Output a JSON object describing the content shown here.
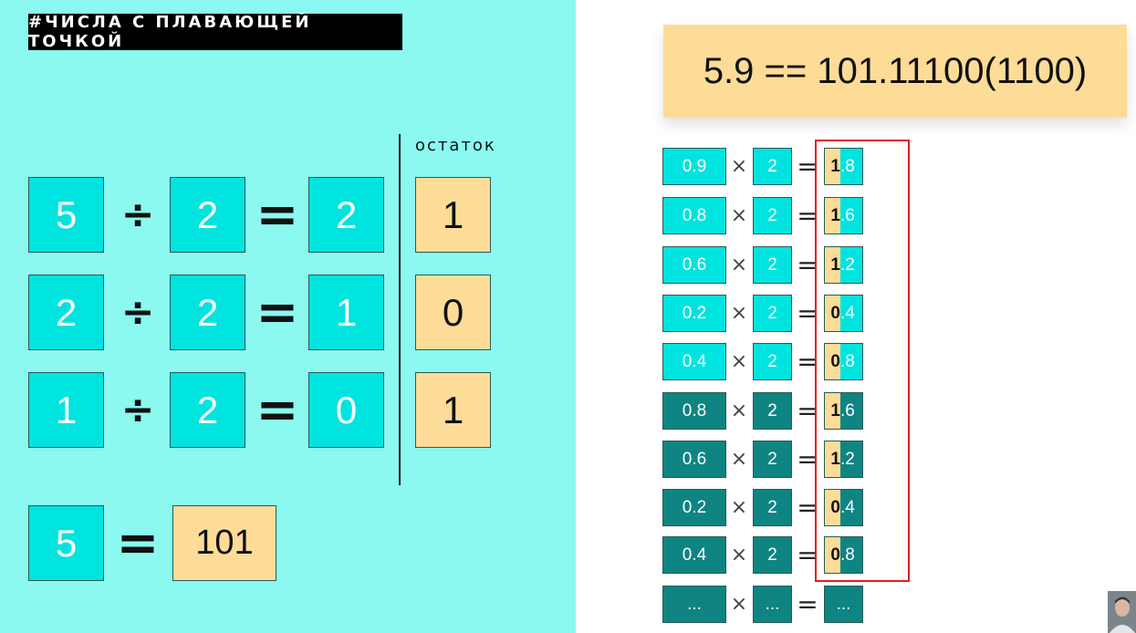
{
  "title": "#ЧИСЛА С ПЛАВАЮЩЕЙ ТОЧКОЙ",
  "left": {
    "remainder_label": "остаток",
    "rows": [
      {
        "dividend": "5",
        "op": "÷",
        "divisor": "2",
        "eq": "=",
        "quotient": "2",
        "remainder": "1"
      },
      {
        "dividend": "2",
        "op": "÷",
        "divisor": "2",
        "eq": "=",
        "quotient": "1",
        "remainder": "0"
      },
      {
        "dividend": "1",
        "op": "÷",
        "divisor": "2",
        "eq": "=",
        "quotient": "0",
        "remainder": "1"
      }
    ],
    "summary": {
      "decimal": "5",
      "eq": "=",
      "binary": "101"
    }
  },
  "right": {
    "header": "5.9 == 101.11100(1100)",
    "rows": [
      {
        "value": "0.9",
        "times": "×",
        "factor": "2",
        "eq": "=",
        "int_part": "1",
        "frac_part": ".8",
        "style": "light"
      },
      {
        "value": "0.8",
        "times": "×",
        "factor": "2",
        "eq": "=",
        "int_part": "1",
        "frac_part": ".6",
        "style": "light"
      },
      {
        "value": "0.6",
        "times": "×",
        "factor": "2",
        "eq": "=",
        "int_part": "1",
        "frac_part": ".2",
        "style": "light"
      },
      {
        "value": "0.2",
        "times": "×",
        "factor": "2",
        "eq": "=",
        "int_part": "0",
        "frac_part": ".4",
        "style": "light"
      },
      {
        "value": "0.4",
        "times": "×",
        "factor": "2",
        "eq": "=",
        "int_part": "0",
        "frac_part": ".8",
        "style": "light"
      },
      {
        "value": "0.8",
        "times": "×",
        "factor": "2",
        "eq": "=",
        "int_part": "1",
        "frac_part": ".6",
        "style": "dark"
      },
      {
        "value": "0.6",
        "times": "×",
        "factor": "2",
        "eq": "=",
        "int_part": "1",
        "frac_part": ".2",
        "style": "dark"
      },
      {
        "value": "0.2",
        "times": "×",
        "factor": "2",
        "eq": "=",
        "int_part": "0",
        "frac_part": ".4",
        "style": "dark"
      },
      {
        "value": "0.4",
        "times": "×",
        "factor": "2",
        "eq": "=",
        "int_part": "0",
        "frac_part": ".8",
        "style": "dark"
      }
    ],
    "ellipsis_row": {
      "value": "...",
      "times": "×",
      "factor": "...",
      "eq": "=",
      "result": "..."
    }
  },
  "colors": {
    "background_left": "#8bf9ef",
    "cyan": "#00e4e0",
    "dark_teal": "#0e8582",
    "peach": "#fddc98",
    "highlight_frame": "#e41b1b"
  }
}
